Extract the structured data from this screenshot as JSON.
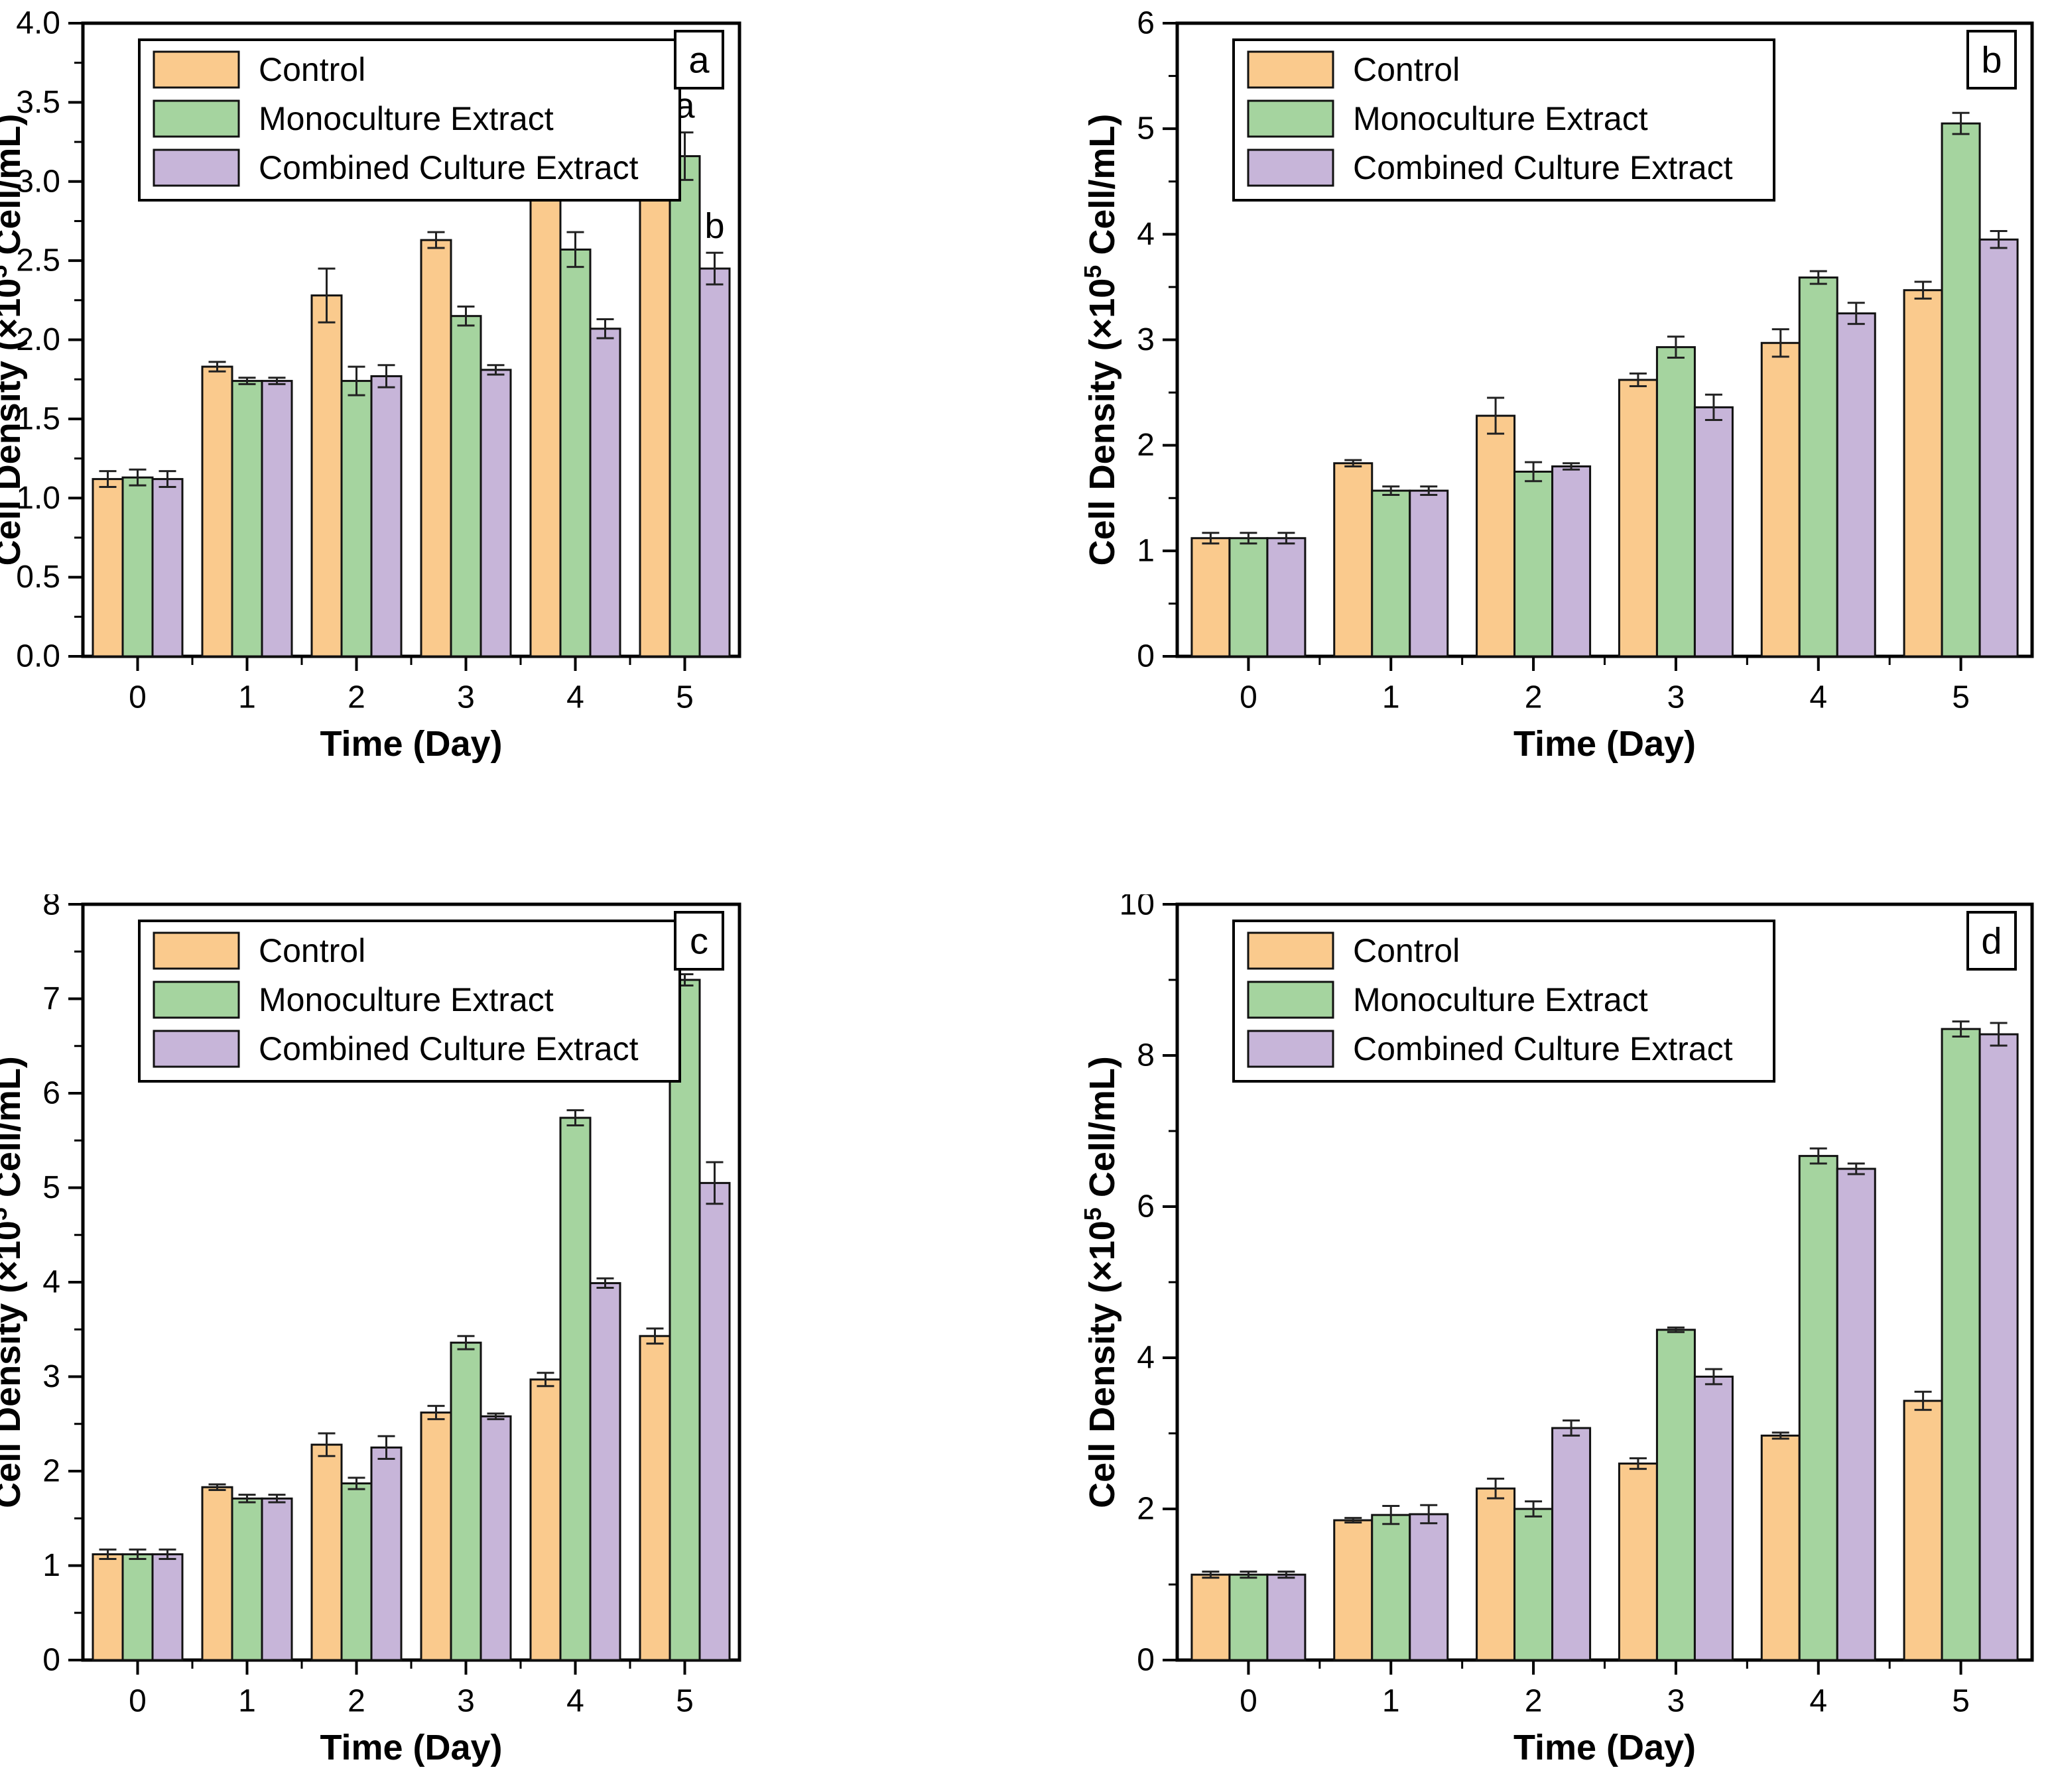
{
  "figure_title": "",
  "legend": {
    "items": [
      {
        "label": "Control",
        "color": "#FACA8D"
      },
      {
        "label": "Monoculture Extract",
        "color": "#A5D49F"
      },
      {
        "label": "Combined Culture Extract",
        "color": "#C7B5D9"
      }
    ]
  },
  "axes_text": {
    "xlabel": "Time (Day)",
    "ylabel_pre": "Cell Density (×10",
    "ylabel_sup": "5",
    "ylabel_post": " Cell/mL)"
  },
  "chart_data": [
    {
      "type": "bar",
      "panel_letter": "a",
      "title": "",
      "xlabel": "Time (Day)",
      "ylabel": "Cell Density (×10^5 Cell/mL)",
      "categories": [
        "0",
        "1",
        "2",
        "3",
        "4",
        "5"
      ],
      "ylim": [
        0,
        4
      ],
      "ytick_major": 0.5,
      "ytick_minor": 0.25,
      "ytick_decimals": 1,
      "grid": false,
      "legend_position": "top-left",
      "series": [
        {
          "name": "Control",
          "color": "#FACA8D",
          "values": [
            1.12,
            1.83,
            2.28,
            2.63,
            2.98,
            3.44
          ],
          "errors": [
            0.05,
            0.03,
            0.17,
            0.05,
            0.04,
            0.13
          ]
        },
        {
          "name": "Monoculture Extract",
          "color": "#A5D49F",
          "values": [
            1.13,
            1.74,
            1.74,
            2.15,
            2.57,
            3.16
          ],
          "errors": [
            0.05,
            0.02,
            0.09,
            0.06,
            0.11,
            0.15
          ]
        },
        {
          "name": "Combined Culture Extract",
          "color": "#C7B5D9",
          "values": [
            1.12,
            1.74,
            1.77,
            1.81,
            2.07,
            2.45
          ],
          "errors": [
            0.05,
            0.02,
            0.07,
            0.03,
            0.06,
            0.1
          ]
        }
      ],
      "annotations": [
        {
          "series": 0,
          "day": 5,
          "text": "a"
        },
        {
          "series": 1,
          "day": 5,
          "text": "a"
        },
        {
          "series": 2,
          "day": 5,
          "text": "b"
        }
      ]
    },
    {
      "type": "bar",
      "panel_letter": "b",
      "title": "",
      "xlabel": "Time (Day)",
      "ylabel": "Cell Density (×10^5 Cell/mL)",
      "categories": [
        "0",
        "1",
        "2",
        "3",
        "4",
        "5"
      ],
      "ylim": [
        0,
        6
      ],
      "ytick_major": 1,
      "ytick_minor": 0.5,
      "ytick_decimals": 0,
      "grid": false,
      "legend_position": "top-left",
      "series": [
        {
          "name": "Control",
          "color": "#FACA8D",
          "values": [
            1.12,
            1.83,
            2.28,
            2.62,
            2.97,
            3.47
          ],
          "errors": [
            0.05,
            0.03,
            0.17,
            0.06,
            0.13,
            0.08
          ]
        },
        {
          "name": "Monoculture Extract",
          "color": "#A5D49F",
          "values": [
            1.12,
            1.57,
            1.75,
            2.93,
            3.59,
            5.05
          ],
          "errors": [
            0.05,
            0.04,
            0.09,
            0.1,
            0.06,
            0.1
          ]
        },
        {
          "name": "Combined Culture Extract",
          "color": "#C7B5D9",
          "values": [
            1.12,
            1.57,
            1.8,
            2.36,
            3.25,
            3.95
          ],
          "errors": [
            0.05,
            0.04,
            0.03,
            0.12,
            0.1,
            0.08
          ]
        }
      ],
      "annotations": []
    },
    {
      "type": "bar",
      "panel_letter": "c",
      "title": "",
      "xlabel": "Time (Day)",
      "ylabel": "Cell Density (×10^5 Cell/mL)",
      "categories": [
        "0",
        "1",
        "2",
        "3",
        "4",
        "5"
      ],
      "ylim": [
        0,
        8
      ],
      "ytick_major": 1,
      "ytick_minor": 0.5,
      "ytick_decimals": 0,
      "grid": false,
      "legend_position": "top-left",
      "series": [
        {
          "name": "Control",
          "color": "#FACA8D",
          "values": [
            1.12,
            1.83,
            2.28,
            2.62,
            2.97,
            3.43
          ],
          "errors": [
            0.05,
            0.03,
            0.12,
            0.07,
            0.07,
            0.08
          ]
        },
        {
          "name": "Monoculture Extract",
          "color": "#A5D49F",
          "values": [
            1.12,
            1.71,
            1.87,
            3.36,
            5.74,
            7.2
          ],
          "errors": [
            0.05,
            0.04,
            0.06,
            0.07,
            0.08,
            0.06
          ]
        },
        {
          "name": "Combined Culture Extract",
          "color": "#C7B5D9",
          "values": [
            1.12,
            1.71,
            2.25,
            2.58,
            3.99,
            5.05
          ],
          "errors": [
            0.05,
            0.04,
            0.12,
            0.03,
            0.05,
            0.22
          ]
        }
      ],
      "annotations": []
    },
    {
      "type": "bar",
      "panel_letter": "d",
      "title": "",
      "xlabel": "Time (Day)",
      "ylabel": "Cell Density (×10^5 Cell/mL)",
      "categories": [
        "0",
        "1",
        "2",
        "3",
        "4",
        "5"
      ],
      "ylim": [
        0,
        10
      ],
      "ytick_major": 2,
      "ytick_minor": 1,
      "ytick_decimals": 0,
      "grid": false,
      "legend_position": "top-left",
      "series": [
        {
          "name": "Control",
          "color": "#FACA8D",
          "values": [
            1.13,
            1.85,
            2.27,
            2.6,
            2.97,
            3.43
          ],
          "errors": [
            0.04,
            0.03,
            0.13,
            0.07,
            0.04,
            0.12
          ]
        },
        {
          "name": "Monoculture Extract",
          "color": "#A5D49F",
          "values": [
            1.13,
            1.92,
            2.0,
            4.37,
            6.67,
            8.35
          ],
          "errors": [
            0.04,
            0.12,
            0.1,
            0.03,
            0.1,
            0.1
          ]
        },
        {
          "name": "Combined Culture Extract",
          "color": "#C7B5D9",
          "values": [
            1.13,
            1.93,
            3.07,
            3.75,
            6.5,
            8.28
          ],
          "errors": [
            0.04,
            0.12,
            0.1,
            0.1,
            0.07,
            0.15
          ]
        }
      ],
      "annotations": []
    }
  ]
}
